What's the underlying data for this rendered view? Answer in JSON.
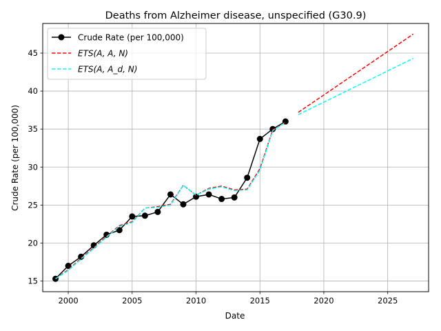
{
  "chart_data": {
    "type": "line",
    "title": "Deaths from Alzheimer disease, unspecified (G30.9)",
    "xlabel": "Date",
    "ylabel": "Crude Rate (per 100,000)",
    "xlim": [
      1998.0,
      2028.2
    ],
    "ylim": [
      13.6,
      48.9
    ],
    "xticks": [
      2000,
      2005,
      2010,
      2015,
      2020,
      2025
    ],
    "yticks": [
      15,
      20,
      25,
      30,
      35,
      40,
      45
    ],
    "grid": true,
    "legend": {
      "placement": "top-left",
      "entries": [
        {
          "label": "Crude Rate (per 100,000)",
          "math": false
        },
        {
          "label": "ETS(A, A, N)",
          "math": true
        },
        {
          "label": "ETS(A, A_d, N)",
          "math": true
        }
      ]
    },
    "series": [
      {
        "name": "Crude Rate (per 100,000)",
        "color": "#000000",
        "style": "solid-marker",
        "x": [
          1999,
          2000,
          2001,
          2002,
          2003,
          2004,
          2005,
          2006,
          2007,
          2008,
          2009,
          2010,
          2011,
          2012,
          2013,
          2014,
          2015,
          2016,
          2017
        ],
        "y": [
          15.3,
          17.0,
          18.2,
          19.7,
          21.1,
          21.7,
          23.5,
          23.6,
          24.1,
          26.4,
          25.1,
          26.1,
          26.4,
          25.8,
          26.0,
          28.6,
          33.7,
          35.0,
          36.0
        ]
      },
      {
        "name": "ETS(A, A, N)",
        "color": "#ff0000",
        "style": "dashed",
        "x": [
          1999,
          2000,
          2001,
          2002,
          2003,
          2004,
          2005,
          2006,
          2007,
          2008,
          2009,
          2010,
          2011,
          2012,
          2013,
          2014,
          2015,
          2016,
          2017
        ],
        "y": [
          15.3,
          16.5,
          18.0,
          19.4,
          20.9,
          22.3,
          22.8,
          24.6,
          24.8,
          25.1,
          27.6,
          26.3,
          27.2,
          27.5,
          27.0,
          27.1,
          29.8,
          34.9,
          35.9
        ]
      },
      {
        "name": "ETS(A, A_d, N)",
        "color": "#00ffff",
        "style": "dashed",
        "x": [
          1999,
          2000,
          2001,
          2002,
          2003,
          2004,
          2005,
          2006,
          2007,
          2008,
          2009,
          2010,
          2011,
          2012,
          2013,
          2014,
          2015,
          2016,
          2017
        ],
        "y": [
          15.3,
          16.4,
          17.9,
          19.3,
          20.8,
          22.2,
          22.7,
          24.6,
          24.7,
          25.0,
          27.6,
          26.3,
          27.1,
          27.4,
          26.9,
          27.0,
          29.6,
          34.8,
          35.9
        ]
      },
      {
        "name": "ETS(A, A, N) forecast",
        "color": "#ff0000",
        "style": "dashed",
        "x": [
          2018,
          2027
        ],
        "y": [
          37.2,
          47.5
        ]
      },
      {
        "name": "ETS(A, A_d, N) forecast",
        "color": "#00ffff",
        "style": "dashed",
        "x": [
          2018,
          2027
        ],
        "y": [
          36.9,
          44.3
        ]
      }
    ]
  }
}
